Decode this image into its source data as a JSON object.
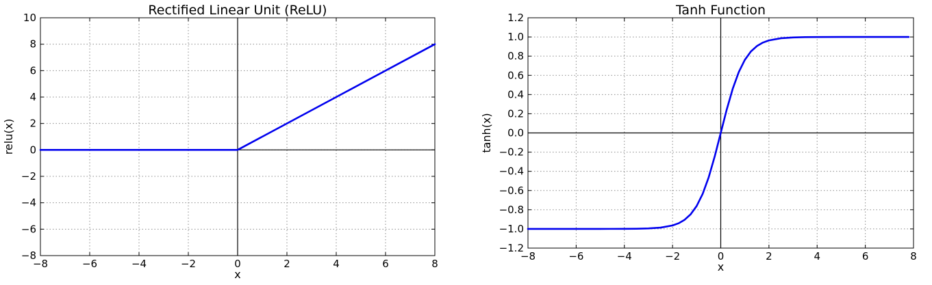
{
  "chart_data": [
    {
      "type": "line",
      "title": "Rectified Linear Unit (ReLU)",
      "xlabel": "x",
      "ylabel": "relu(x)",
      "xlim": [
        -8,
        8
      ],
      "ylim": [
        -8,
        10
      ],
      "xticks": [
        -8,
        -6,
        -4,
        -2,
        0,
        2,
        4,
        6,
        8
      ],
      "yticks": [
        -8,
        -6,
        -4,
        -2,
        0,
        2,
        4,
        6,
        8,
        10
      ],
      "xtick_labels": [
        "−8",
        "−6",
        "−4",
        "−2",
        "0",
        "2",
        "4",
        "6",
        "8"
      ],
      "ytick_labels": [
        "−8",
        "−6",
        "−4",
        "−2",
        "0",
        "2",
        "4",
        "6",
        "8",
        "10"
      ],
      "grid": true,
      "series": [
        {
          "color": "#0000ee",
          "x": [
            -8,
            0,
            8
          ],
          "y": [
            0,
            0,
            8
          ]
        }
      ]
    },
    {
      "type": "line",
      "title": "Tanh Function",
      "xlabel": "x",
      "ylabel": "tanh(x)",
      "xlim": [
        -8,
        8
      ],
      "ylim": [
        -1.2,
        1.2
      ],
      "xticks": [
        -8,
        -6,
        -4,
        -2,
        0,
        2,
        4,
        6,
        8
      ],
      "yticks": [
        -1.2,
        -1.0,
        -0.8,
        -0.6,
        -0.4,
        -0.2,
        0.0,
        0.2,
        0.4,
        0.6,
        0.8,
        1.0,
        1.2
      ],
      "xtick_labels": [
        "−8",
        "−6",
        "−4",
        "−2",
        "0",
        "2",
        "4",
        "6",
        "8"
      ],
      "ytick_labels": [
        "−1.2",
        "−1.0",
        "−0.8",
        "−0.6",
        "−0.4",
        "−0.2",
        "0.0",
        "0.2",
        "0.4",
        "0.6",
        "0.8",
        "1.0",
        "1.2"
      ],
      "grid": true,
      "series": [
        {
          "color": "#0000ee",
          "x": [
            -8,
            -7,
            -6,
            -5,
            -4,
            -3.5,
            -3,
            -2.5,
            -2,
            -1.75,
            -1.5,
            -1.25,
            -1,
            -0.75,
            -0.5,
            -0.25,
            0,
            0.25,
            0.5,
            0.75,
            1,
            1.25,
            1.5,
            1.75,
            2,
            2.5,
            3,
            3.5,
            4,
            5,
            6,
            7,
            7.8
          ],
          "y": [
            -1.0,
            -1.0,
            -1.0,
            -0.9999,
            -0.9993,
            -0.9982,
            -0.9951,
            -0.9866,
            -0.964,
            -0.9414,
            -0.9051,
            -0.8483,
            -0.7616,
            -0.6351,
            -0.4621,
            -0.2449,
            0.0,
            0.2449,
            0.4621,
            0.6351,
            0.7616,
            0.8483,
            0.9051,
            0.9414,
            0.964,
            0.9866,
            0.9951,
            0.9982,
            0.9993,
            0.9999,
            1.0,
            1.0,
            1.0
          ]
        }
      ]
    }
  ]
}
